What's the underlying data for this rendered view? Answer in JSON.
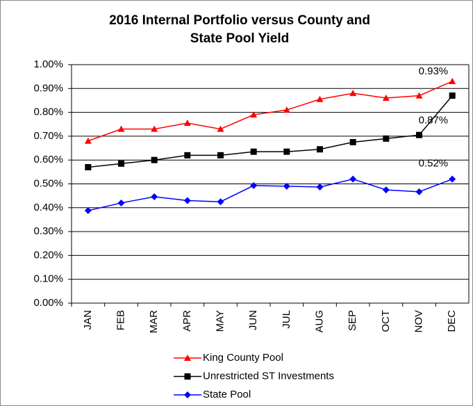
{
  "chart_data": {
    "type": "line",
    "title": [
      "2016 Internal Portfolio versus County and",
      "State Pool Yield"
    ],
    "categories": [
      "JAN",
      "FEB",
      "MAR",
      "APR",
      "MAY",
      "JUN",
      "JUL",
      "AUG",
      "SEP",
      "OCT",
      "NOV",
      "DEC"
    ],
    "series": [
      {
        "name": "King County Pool",
        "color": "#ff0000",
        "marker": "triangle",
        "values": [
          0.68,
          0.73,
          0.73,
          0.755,
          0.73,
          0.79,
          0.81,
          0.855,
          0.88,
          0.86,
          0.87,
          0.93
        ],
        "value_labels": [
          null,
          null,
          null,
          null,
          null,
          null,
          null,
          null,
          null,
          null,
          null,
          "0.93%"
        ]
      },
      {
        "name": "Unrestricted ST Investments",
        "color": "#000000",
        "marker": "square",
        "values": [
          0.57,
          0.585,
          0.6,
          0.62,
          0.62,
          0.635,
          0.635,
          0.645,
          0.675,
          0.69,
          0.705,
          0.87
        ],
        "value_labels": [
          null,
          null,
          null,
          null,
          null,
          null,
          null,
          null,
          null,
          null,
          null,
          "0.87%"
        ]
      },
      {
        "name": "State Pool",
        "color": "#0000ff",
        "marker": "diamond",
        "values": [
          0.388,
          0.42,
          0.446,
          0.43,
          0.425,
          0.493,
          0.49,
          0.487,
          0.52,
          0.475,
          0.467,
          0.52
        ],
        "value_labels": [
          null,
          null,
          null,
          null,
          null,
          null,
          null,
          null,
          null,
          null,
          null,
          "0.52%"
        ]
      }
    ],
    "ylim": [
      0,
      1
    ],
    "yticks": [
      {
        "value": 0,
        "label": "0.00%"
      },
      {
        "value": 0.1,
        "label": "0.10%"
      },
      {
        "value": 0.2,
        "label": "0.20%"
      },
      {
        "value": 0.3,
        "label": "0.30%"
      },
      {
        "value": 0.4,
        "label": "0.40%"
      },
      {
        "value": 0.5,
        "label": "0.50%"
      },
      {
        "value": 0.6,
        "label": "0.60%"
      },
      {
        "value": 0.7,
        "label": "0.70%"
      },
      {
        "value": 0.8,
        "label": "0.80%"
      },
      {
        "value": 0.9,
        "label": "0.90%"
      },
      {
        "value": 1,
        "label": "1.00%"
      }
    ],
    "grid": true,
    "legend": "bottom"
  }
}
